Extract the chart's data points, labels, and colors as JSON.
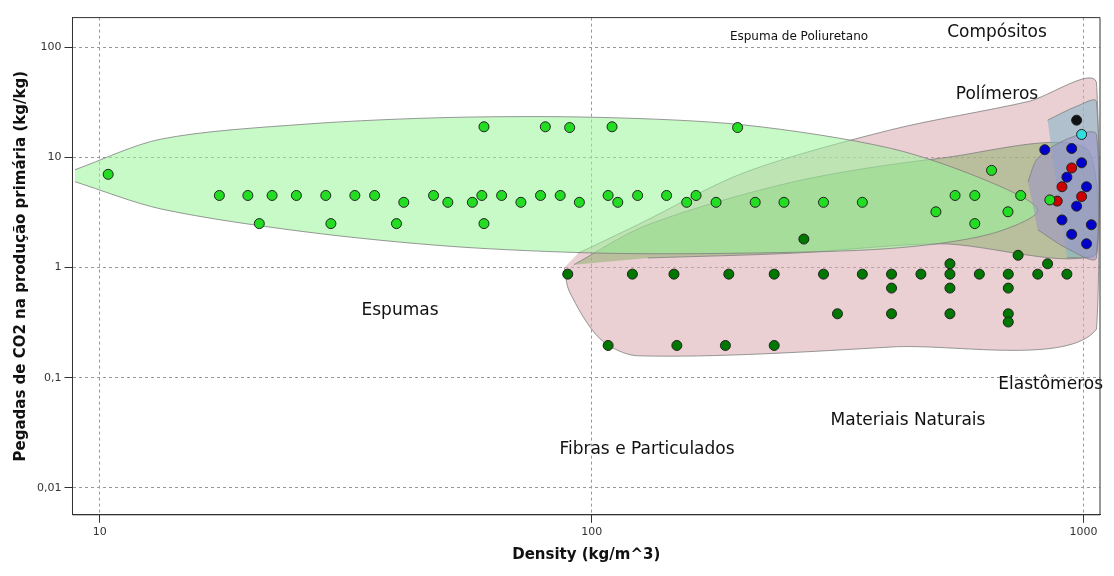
{
  "chart_data": {
    "type": "scatter",
    "xlabel": "Density (kg/m^3)",
    "ylabel": "Pegadas de CO2 na produção primária (kg/kg)",
    "log": "xy",
    "grid": true,
    "legend": false,
    "marker": "circle",
    "xlim": [
      8.8,
      1080
    ],
    "ylim": [
      0.0057,
      185
    ],
    "xticks": [
      10,
      100,
      1000
    ],
    "yticks": [
      {
        "value": 0.01,
        "label": "0,01"
      },
      {
        "value": 0.1,
        "label": "0,1"
      },
      1,
      10,
      100
    ],
    "series": [
      {
        "type": "area",
        "marker": "none",
        "color": "#d9a8ae",
        "x": [
          88,
          90,
          104,
          124,
          407,
          1062,
          1062,
          771,
          407,
          205,
          124,
          94
        ],
        "values": [
          1,
          0.61,
          0.225,
          0.158,
          0.19,
          0.275,
          48,
          32,
          17.8,
          7.3,
          2.44,
          1.35
        ]
      },
      {
        "type": "area",
        "marker": "none",
        "color": "#8fb070",
        "x": [
          92,
          130,
          258,
          512,
          1014,
          1062,
          512,
          258,
          130
        ],
        "values": [
          1.06,
          2.44,
          6.0,
          9.8,
          12,
          1.35,
          1.64,
          1.35,
          1.22
        ]
      },
      {
        "type": "area",
        "marker": "none",
        "color": "#99f599",
        "x": [
          8.9,
          13.3,
          26.3,
          52.2,
          104,
          205,
          407,
          643,
          807,
          643,
          407,
          205,
          104,
          52.2,
          26.3,
          13.3,
          8.9
        ],
        "values": [
          7.7,
          14.6,
          20,
          23,
          23,
          19.6,
          12,
          6.0,
          3.3,
          2.0,
          1.49,
          1.35,
          1.35,
          1.55,
          2.1,
          3.4,
          6.0
        ]
      },
      {
        "type": "area",
        "marker": "none",
        "color": "#7fb5c8",
        "x": [
          845,
          968,
          1062,
          1062,
          925
        ],
        "values": [
          21.7,
          29,
          32,
          1.35,
          1.22
        ]
      },
      {
        "type": "area",
        "marker": "none",
        "color": "#9b8fc8",
        "x": [
          771,
          807,
          925,
          1062,
          1062,
          925,
          807
        ],
        "values": [
          6.0,
          9.8,
          14.6,
          16.1,
          1.22,
          1.49,
          2.2
        ]
      },
      {
        "color": "#22dd22",
        "x": [
          10.4,
          60.4,
          80.5,
          90.2,
          110,
          198,
          17.5,
          20,
          22.4,
          25.1,
          28.8,
          33,
          36.2,
          47.7,
          59.8,
          65.6,
          78.7,
          86.3,
          108,
          124,
          142,
          163,
          548,
          601,
          745,
          41.5,
          51,
          57.2,
          71.8,
          94.4,
          113,
          156,
          179,
          215,
          246,
          296,
          355,
          854,
          21.1,
          29.5,
          40.1,
          60.4,
          601,
          650,
          501,
          702
        ],
        "values": [
          7.0,
          18.9,
          18.9,
          18.6,
          18.9,
          18.6,
          4.5,
          4.5,
          4.5,
          4.5,
          4.5,
          4.5,
          4.5,
          4.5,
          4.5,
          4.5,
          4.5,
          4.5,
          4.5,
          4.5,
          4.5,
          4.5,
          4.5,
          4.5,
          4.5,
          3.9,
          3.9,
          3.9,
          3.9,
          3.9,
          3.9,
          3.9,
          3.9,
          3.9,
          3.9,
          3.9,
          3.9,
          4.1,
          2.5,
          2.5,
          2.5,
          2.5,
          2.5,
          7.6,
          3.2,
          3.2
        ]
      },
      {
        "color": "#007700",
        "x": [
          270,
          89.4,
          121,
          147,
          190,
          235,
          296,
          355,
          407,
          467,
          535,
          614,
          703,
          807,
          925,
          407,
          535,
          703,
          316,
          407,
          535,
          703,
          703,
          108,
          149,
          187,
          235,
          736,
          535,
          845
        ],
        "values": [
          1.81,
          0.87,
          0.87,
          0.87,
          0.87,
          0.87,
          0.87,
          0.87,
          0.87,
          0.87,
          0.87,
          0.87,
          0.87,
          0.87,
          0.87,
          0.65,
          0.65,
          0.65,
          0.38,
          0.38,
          0.38,
          0.38,
          0.32,
          0.196,
          0.196,
          0.196,
          0.196,
          1.29,
          1.08,
          1.08
        ]
      },
      {
        "color": "#0000cc",
        "x": [
          834,
          946,
          991,
          925,
          1014,
          968,
          904,
          1037,
          946,
          1014
        ],
        "values": [
          11.7,
          12,
          8.9,
          6.6,
          5.4,
          3.6,
          2.7,
          2.44,
          2.0,
          1.64
        ]
      },
      {
        "color": "#cc0000",
        "x": [
          946,
          904,
          991,
          884
        ],
        "values": [
          8.0,
          5.4,
          4.4,
          4.0
        ]
      },
      {
        "color": "#33dddd",
        "x": [
          991
        ],
        "values": [
          16.1
        ]
      },
      {
        "color": "#111111",
        "x": [
          968
        ],
        "values": [
          21.7
        ]
      }
    ],
    "annotations": [
      "Espumas",
      "Fibras e Particulados",
      "Materiais Naturais",
      "Elastômeros",
      "Compósitos",
      "Polímeros",
      "Espuma de Poliuretano"
    ]
  }
}
